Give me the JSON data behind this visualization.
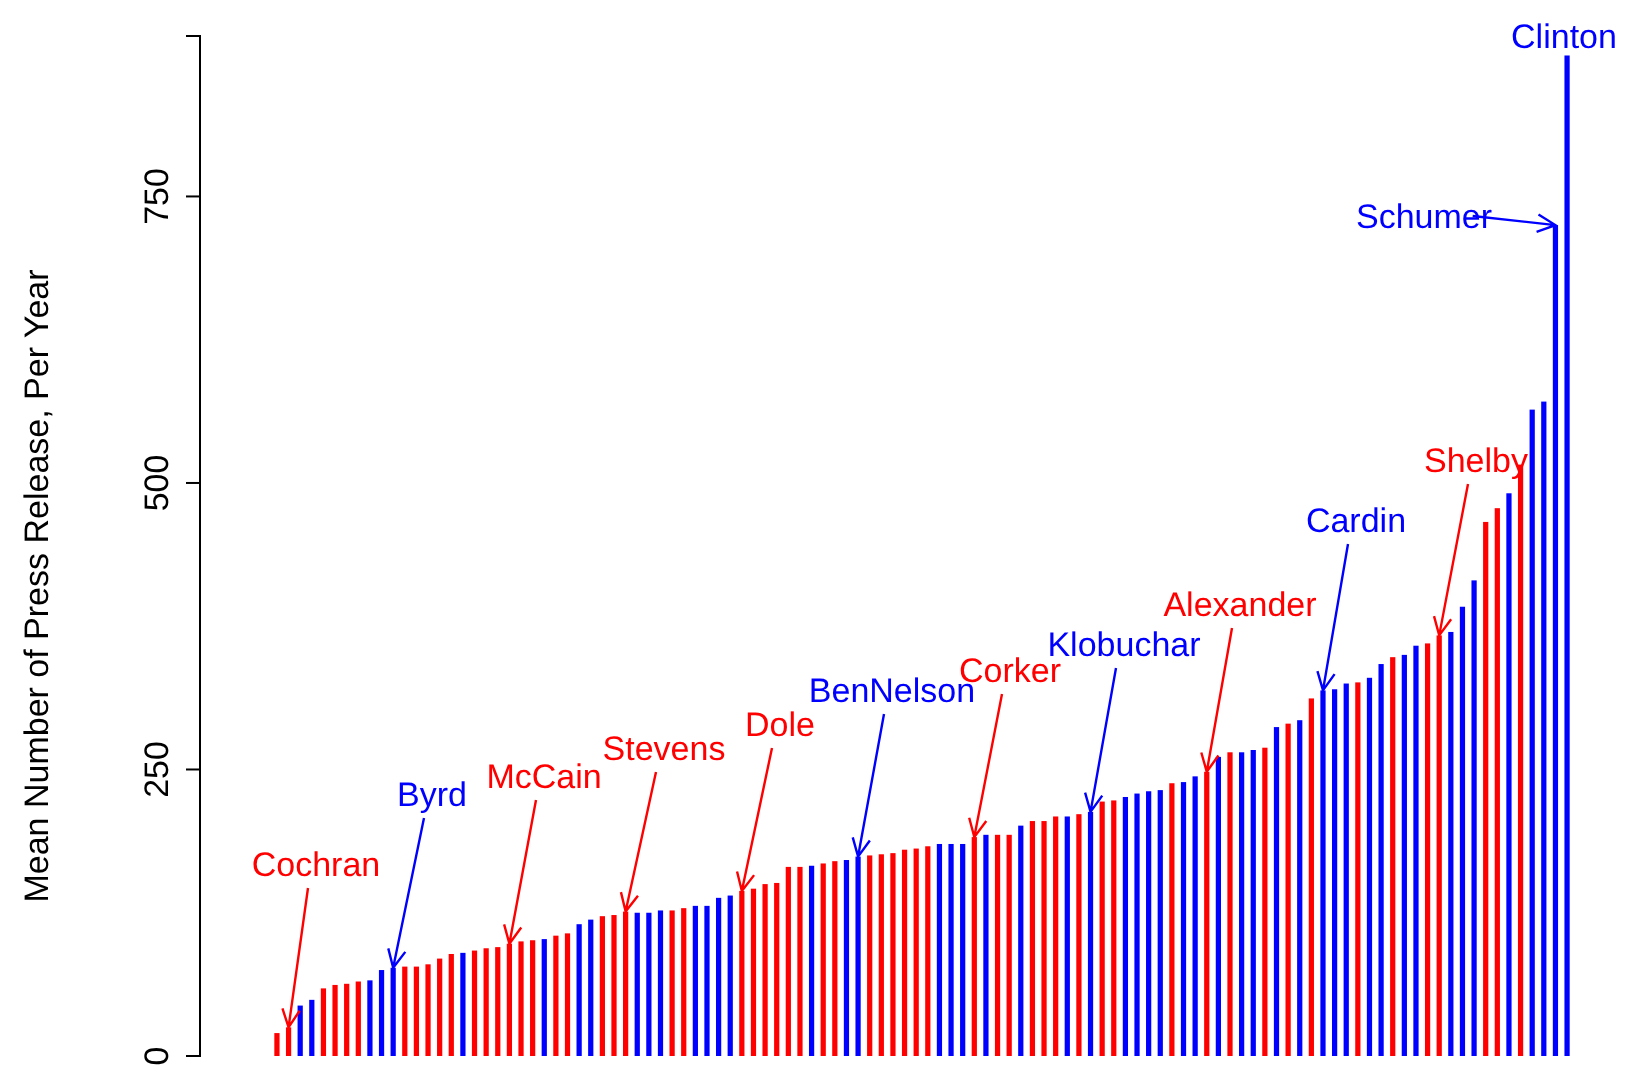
{
  "chart_data": {
    "type": "bar",
    "ylabel": "Mean Number of Press Release, Per Year",
    "categories": [
      null,
      null,
      null,
      null,
      null,
      null,
      null,
      null,
      null,
      null,
      null,
      null,
      null,
      null,
      null,
      null,
      null,
      null,
      null,
      null,
      null,
      null,
      null,
      null,
      null,
      null,
      null,
      null,
      null,
      null,
      null,
      null,
      null,
      null,
      null,
      null,
      null,
      null,
      null,
      null,
      null,
      null,
      null,
      null,
      null,
      null,
      null,
      null,
      null,
      null,
      null,
      null,
      null,
      null,
      null,
      null,
      null,
      null,
      null,
      null,
      null,
      null,
      null,
      null,
      null,
      null,
      null,
      null,
      null,
      null,
      null,
      null,
      null,
      null,
      null,
      null,
      null,
      null,
      null,
      null,
      null,
      null,
      null,
      null,
      null,
      null,
      null,
      null,
      null,
      null,
      null,
      null,
      null,
      null,
      null,
      null,
      null,
      null,
      null,
      null,
      null,
      null,
      null,
      null,
      null,
      null,
      null,
      null,
      null,
      null,
      null,
      null
    ],
    "values": [
      20,
      25,
      44,
      49,
      59,
      62,
      63,
      65,
      66,
      75,
      77,
      78,
      78,
      80,
      85,
      89,
      90,
      92,
      94,
      95,
      98,
      100,
      101,
      102,
      105,
      107,
      115,
      119,
      122,
      123,
      126,
      125,
      125,
      127,
      127,
      129,
      131,
      131,
      138,
      140,
      144,
      146,
      150,
      151,
      165,
      165,
      166,
      168,
      170,
      171,
      174,
      175,
      176,
      177,
      180,
      181,
      183,
      185,
      185,
      185,
      191,
      193,
      193,
      193,
      201,
      205,
      205,
      209,
      209,
      211,
      213,
      222,
      223,
      226,
      229,
      231,
      232,
      238,
      239,
      244,
      248,
      261,
      265,
      265,
      267,
      269,
      287,
      290,
      293,
      312,
      319,
      320,
      325,
      326,
      330,
      342,
      348,
      350,
      358,
      360,
      367,
      370,
      392,
      415,
      466,
      478,
      491,
      516,
      564,
      571,
      725,
      873
    ],
    "colors": [
      "#ff0000",
      "#ff0000",
      "#0000ff",
      "#0000ff",
      "#ff0000",
      "#ff0000",
      "#ff0000",
      "#ff0000",
      "#0000ff",
      "#0000ff",
      "#0000ff",
      "#ff0000",
      "#ff0000",
      "#ff0000",
      "#ff0000",
      "#ff0000",
      "#0000ff",
      "#ff0000",
      "#ff0000",
      "#ff0000",
      "#ff0000",
      "#ff0000",
      "#ff0000",
      "#0000ff",
      "#ff0000",
      "#ff0000",
      "#0000ff",
      "#0000ff",
      "#ff0000",
      "#ff0000",
      "#ff0000",
      "#0000ff",
      "#0000ff",
      "#0000ff",
      "#ff0000",
      "#ff0000",
      "#0000ff",
      "#0000ff",
      "#0000ff",
      "#0000ff",
      "#ff0000",
      "#ff0000",
      "#ff0000",
      "#ff0000",
      "#ff0000",
      "#ff0000",
      "#0000ff",
      "#ff0000",
      "#ff0000",
      "#0000ff",
      "#0000ff",
      "#ff0000",
      "#ff0000",
      "#ff0000",
      "#ff0000",
      "#ff0000",
      "#ff0000",
      "#0000ff",
      "#0000ff",
      "#0000ff",
      "#ff0000",
      "#0000ff",
      "#ff0000",
      "#ff0000",
      "#0000ff",
      "#ff0000",
      "#ff0000",
      "#ff0000",
      "#0000ff",
      "#ff0000",
      "#0000ff",
      "#ff0000",
      "#ff0000",
      "#0000ff",
      "#0000ff",
      "#0000ff",
      "#0000ff",
      "#ff0000",
      "#0000ff",
      "#0000ff",
      "#ff0000",
      "#0000ff",
      "#ff0000",
      "#0000ff",
      "#0000ff",
      "#ff0000",
      "#0000ff",
      "#ff0000",
      "#0000ff",
      "#ff0000",
      "#0000ff",
      "#0000ff",
      "#0000ff",
      "#ff0000",
      "#0000ff",
      "#0000ff",
      "#ff0000",
      "#0000ff",
      "#0000ff",
      "#ff0000",
      "#ff0000",
      "#0000ff",
      "#0000ff",
      "#0000ff",
      "#ff0000",
      "#ff0000",
      "#0000ff",
      "#ff0000",
      "#0000ff",
      "#0000ff",
      "#0000ff",
      "#0000ff"
    ],
    "ylim": [
      0,
      890
    ],
    "yticks": [
      0,
      250,
      500,
      750
    ],
    "grid": false,
    "annotations": [
      "Cochran",
      "Byrd",
      "McCain",
      "Stevens",
      "Dole",
      "BenNelson",
      "Corker",
      "Klobuchar",
      "Alexander",
      "Cardin",
      "Shelby",
      "Schumer",
      "Clinton"
    ]
  }
}
